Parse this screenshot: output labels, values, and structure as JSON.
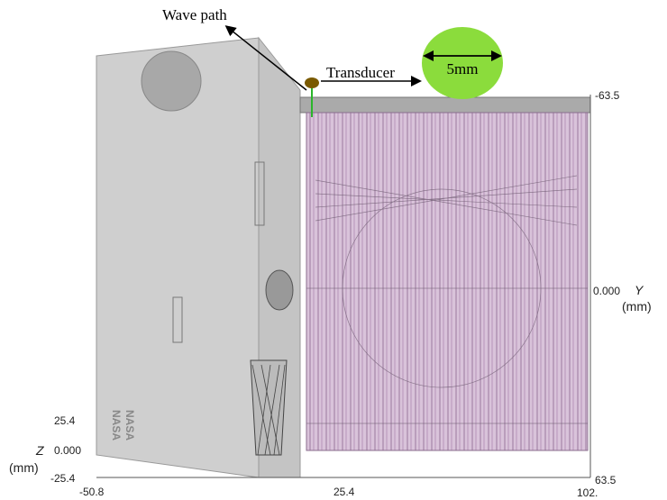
{
  "annotations": {
    "wave_path": "Wave path",
    "transducer": "Transducer",
    "diameter": "5mm"
  },
  "y_axis": {
    "label": "Y",
    "unit": "(mm)",
    "ticks": [
      "-63.5",
      "0.000",
      "63.5"
    ]
  },
  "z_axis": {
    "label": "Z",
    "unit": "(mm)",
    "ticks": [
      "25.4",
      "0.000",
      "-25.4"
    ]
  },
  "x_axis": {
    "ticks": [
      "-50.8",
      "25.4",
      "102."
    ]
  },
  "logo": [
    "NASA",
    "NASA"
  ]
}
